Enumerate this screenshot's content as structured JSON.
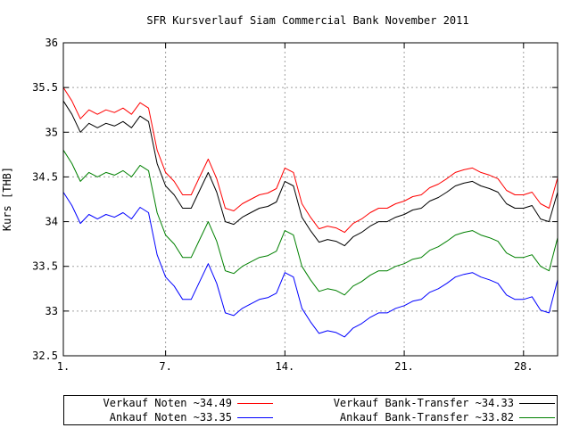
{
  "chart_data": {
    "type": "line",
    "title": "SFR Kursverlauf Siam Commercial Bank November 2011",
    "xlabel": "",
    "ylabel": "Kurs [THB]",
    "xlim": [
      1,
      30
    ],
    "ylim": [
      32.5,
      36
    ],
    "x_ticks": [
      1,
      7,
      14,
      21,
      28
    ],
    "x_tick_labels": [
      "1.",
      "7.",
      "14.",
      "21.",
      "28."
    ],
    "y_ticks": [
      32.5,
      33,
      33.5,
      34,
      34.5,
      35,
      35.5,
      36
    ],
    "y_tick_labels": [
      "32.5",
      "33",
      "33.5",
      "34",
      "34.5",
      "35",
      "35.5",
      "36"
    ],
    "grid": true,
    "legend_position": "bottom",
    "series": [
      {
        "name": "Verkauf Noten ~34.49",
        "color": "#ff0000",
        "x": [
          1,
          1.5,
          2,
          2.5,
          3,
          3.5,
          4,
          4.5,
          5,
          5.5,
          6,
          6.5,
          7,
          7.5,
          8,
          8.5,
          9,
          9.5,
          10,
          10.5,
          11,
          11.5,
          12,
          12.5,
          13,
          13.5,
          14,
          14.5,
          15,
          15.5,
          16,
          16.5,
          17,
          17.5,
          18,
          18.5,
          19,
          19.5,
          20,
          20.5,
          21,
          21.5,
          22,
          22.5,
          23,
          23.5,
          24,
          24.5,
          25,
          25.5,
          26,
          26.5,
          27,
          27.5,
          28,
          28.5,
          29,
          29.5,
          30
        ],
        "values": [
          35.5,
          35.35,
          35.15,
          35.25,
          35.2,
          35.25,
          35.22,
          35.27,
          35.2,
          35.33,
          35.27,
          34.8,
          34.55,
          34.45,
          34.3,
          34.3,
          34.5,
          34.7,
          34.48,
          34.15,
          34.12,
          34.2,
          34.25,
          34.3,
          34.32,
          34.37,
          34.6,
          34.55,
          34.2,
          34.05,
          33.92,
          33.95,
          33.93,
          33.88,
          33.98,
          34.03,
          34.1,
          34.15,
          34.15,
          34.2,
          34.23,
          34.28,
          34.3,
          34.38,
          34.42,
          34.48,
          34.55,
          34.58,
          34.6,
          34.55,
          34.52,
          34.48,
          34.35,
          34.3,
          34.3,
          34.33,
          34.2,
          34.15,
          34.49
        ]
      },
      {
        "name": "Verkauf Bank-Transfer ~34.33",
        "color": "#000000",
        "x": [
          1,
          1.5,
          2,
          2.5,
          3,
          3.5,
          4,
          4.5,
          5,
          5.5,
          6,
          6.5,
          7,
          7.5,
          8,
          8.5,
          9,
          9.5,
          10,
          10.5,
          11,
          11.5,
          12,
          12.5,
          13,
          13.5,
          14,
          14.5,
          15,
          15.5,
          16,
          16.5,
          17,
          17.5,
          18,
          18.5,
          19,
          19.5,
          20,
          20.5,
          21,
          21.5,
          22,
          22.5,
          23,
          23.5,
          24,
          24.5,
          25,
          25.5,
          26,
          26.5,
          27,
          27.5,
          28,
          28.5,
          29,
          29.5,
          30
        ],
        "values": [
          35.35,
          35.2,
          35.0,
          35.1,
          35.05,
          35.1,
          35.07,
          35.12,
          35.05,
          35.18,
          35.12,
          34.65,
          34.4,
          34.3,
          34.15,
          34.15,
          34.35,
          34.55,
          34.33,
          34.0,
          33.97,
          34.05,
          34.1,
          34.15,
          34.17,
          34.22,
          34.45,
          34.4,
          34.05,
          33.9,
          33.77,
          33.8,
          33.78,
          33.73,
          33.83,
          33.88,
          33.95,
          34.0,
          34.0,
          34.05,
          34.08,
          34.13,
          34.15,
          34.23,
          34.27,
          34.33,
          34.4,
          34.43,
          34.45,
          34.4,
          34.37,
          34.33,
          34.2,
          34.15,
          34.15,
          34.18,
          34.03,
          34.0,
          34.33
        ]
      },
      {
        "name": "Ankauf Bank-Transfer ~33.82",
        "color": "#008000",
        "x": [
          1,
          1.5,
          2,
          2.5,
          3,
          3.5,
          4,
          4.5,
          5,
          5.5,
          6,
          6.5,
          7,
          7.5,
          8,
          8.5,
          9,
          9.5,
          10,
          10.5,
          11,
          11.5,
          12,
          12.5,
          13,
          13.5,
          14,
          14.5,
          15,
          15.5,
          16,
          16.5,
          17,
          17.5,
          18,
          18.5,
          19,
          19.5,
          20,
          20.5,
          21,
          21.5,
          22,
          22.5,
          23,
          23.5,
          24,
          24.5,
          25,
          25.5,
          26,
          26.5,
          27,
          27.5,
          28,
          28.5,
          29,
          29.5,
          30
        ],
        "values": [
          34.8,
          34.65,
          34.45,
          34.55,
          34.5,
          34.55,
          34.52,
          34.57,
          34.5,
          34.63,
          34.57,
          34.1,
          33.85,
          33.75,
          33.6,
          33.6,
          33.8,
          34.0,
          33.78,
          33.45,
          33.42,
          33.5,
          33.55,
          33.6,
          33.62,
          33.67,
          33.9,
          33.85,
          33.5,
          33.35,
          33.22,
          33.25,
          33.23,
          33.18,
          33.28,
          33.33,
          33.4,
          33.45,
          33.45,
          33.5,
          33.53,
          33.58,
          33.6,
          33.68,
          33.72,
          33.78,
          33.85,
          33.88,
          33.9,
          33.85,
          33.82,
          33.78,
          33.65,
          33.6,
          33.6,
          33.63,
          33.5,
          33.45,
          33.82
        ]
      },
      {
        "name": "Ankauf Noten ~33.35",
        "color": "#0000ff",
        "x": [
          1,
          1.5,
          2,
          2.5,
          3,
          3.5,
          4,
          4.5,
          5,
          5.5,
          6,
          6.5,
          7,
          7.5,
          8,
          8.5,
          9,
          9.5,
          10,
          10.5,
          11,
          11.5,
          12,
          12.5,
          13,
          13.5,
          14,
          14.5,
          15,
          15.5,
          16,
          16.5,
          17,
          17.5,
          18,
          18.5,
          19,
          19.5,
          20,
          20.5,
          21,
          21.5,
          22,
          22.5,
          23,
          23.5,
          24,
          24.5,
          25,
          25.5,
          26,
          26.5,
          27,
          27.5,
          28,
          28.5,
          29,
          29.5,
          30
        ],
        "values": [
          34.33,
          34.18,
          33.98,
          34.08,
          34.03,
          34.08,
          34.05,
          34.1,
          34.03,
          34.16,
          34.1,
          33.63,
          33.38,
          33.28,
          33.13,
          33.13,
          33.33,
          33.53,
          33.31,
          32.98,
          32.95,
          33.03,
          33.08,
          33.13,
          33.15,
          33.2,
          33.43,
          33.38,
          33.03,
          32.88,
          32.75,
          32.78,
          32.76,
          32.71,
          32.81,
          32.86,
          32.93,
          32.98,
          32.98,
          33.03,
          33.06,
          33.11,
          33.13,
          33.21,
          33.25,
          33.31,
          33.38,
          33.41,
          33.43,
          33.38,
          33.35,
          33.31,
          33.18,
          33.13,
          33.13,
          33.16,
          33.01,
          32.98,
          33.35
        ]
      }
    ]
  }
}
